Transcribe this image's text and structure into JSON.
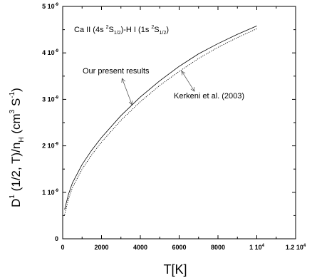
{
  "chart_data": {
    "type": "line",
    "title": "",
    "xlabel": "T[K]",
    "ylabel": {
      "prefix": "D",
      "sup1": "1",
      "mid": " (1/2, T)/n",
      "sub": "H",
      "unit_open": " (cm",
      "sup3": "3",
      "unit_mid": " S",
      "supm1": "-1",
      "unit_close": ")"
    },
    "xlim": [
      0,
      12000
    ],
    "ylim": [
      0,
      5e-09
    ],
    "x_ticks": [
      {
        "value": 0,
        "label": "0",
        "exp": ""
      },
      {
        "value": 2000,
        "label": "2000",
        "exp": ""
      },
      {
        "value": 4000,
        "label": "4000",
        "exp": ""
      },
      {
        "value": 6000,
        "label": "6000",
        "exp": ""
      },
      {
        "value": 8000,
        "label": "8000",
        "exp": ""
      },
      {
        "value": 10000,
        "label": "1 10",
        "exp": "4"
      },
      {
        "value": 12000,
        "label": "1.2 10",
        "exp": "4"
      }
    ],
    "y_ticks": [
      {
        "value": 0,
        "label": "0",
        "exp": ""
      },
      {
        "value": 1e-09,
        "label": "1 10",
        "exp": "-9"
      },
      {
        "value": 2e-09,
        "label": "2 10",
        "exp": "-9"
      },
      {
        "value": 3e-09,
        "label": "3 10",
        "exp": "-9"
      },
      {
        "value": 4e-09,
        "label": "4 10",
        "exp": "-9"
      },
      {
        "value": 5e-09,
        "label": "5 10",
        "exp": "-9"
      }
    ],
    "system_label": {
      "p1": "Ca II (4s ",
      "p1_sup": "2",
      "p1_main": "S",
      "p1_sub": "1/2",
      "p2": ")-H I (1s ",
      "p2_sup": "2",
      "p2_main": "S",
      "p2_sub": "1/2",
      "p3": ")"
    },
    "series": [
      {
        "name": "Our present results",
        "style": "solid",
        "color": "#000000",
        "x": [
          100,
          300,
          500,
          1000,
          1500,
          2000,
          3000,
          4000,
          5000,
          6000,
          7000,
          8000,
          9000,
          10000
        ],
        "y": [
          6.3e-10,
          9.6e-10,
          1.2e-09,
          1.6e-09,
          1.91e-09,
          2.18e-09,
          2.65e-09,
          3.05e-09,
          3.4e-09,
          3.71e-09,
          3.98e-09,
          4.2e-09,
          4.4e-09,
          4.58e-09
        ]
      },
      {
        "name": "Kerkeni et al. (2003)",
        "style": "dotted",
        "color": "#000000",
        "x": [
          100,
          300,
          500,
          1000,
          1500,
          2000,
          3000,
          4000,
          5000,
          6000,
          7000,
          8000,
          9000,
          10000
        ],
        "y": [
          5.2e-10,
          8.6e-10,
          1.1e-09,
          1.5e-09,
          1.81e-09,
          2.08e-09,
          2.55e-09,
          2.95e-09,
          3.3e-09,
          3.6e-09,
          3.88e-09,
          4.12e-09,
          4.33e-09,
          4.52e-09
        ]
      }
    ],
    "annotations": [
      {
        "text": "Our present results",
        "series": 0,
        "arrow_to_x": 3500
      },
      {
        "text": "Kerkeni et al. (2003)",
        "series": 1,
        "arrow_to_x": 6200
      }
    ]
  }
}
